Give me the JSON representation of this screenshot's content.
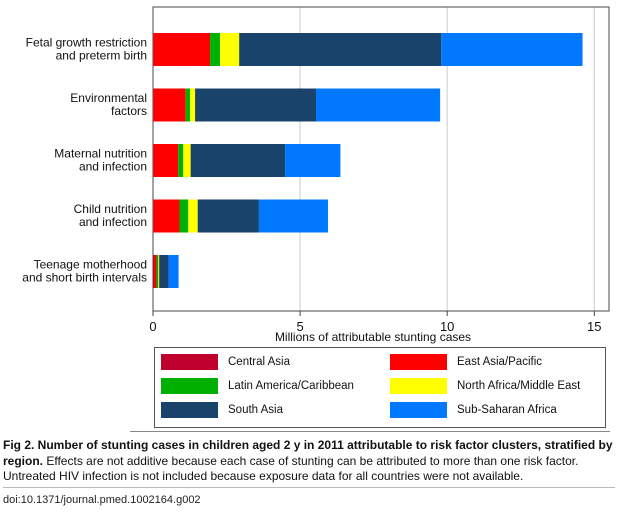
{
  "chart_data": {
    "type": "bar",
    "orientation": "horizontal",
    "stacked": true,
    "title": "",
    "xlabel": "Millions of attributable stunting cases",
    "ylabel": "",
    "xlim": [
      0,
      15.5
    ],
    "xticks": [
      0,
      5,
      10,
      15
    ],
    "grid": true,
    "legend_position": "bottom",
    "categories": [
      [
        "Fetal growth restriction",
        "and preterm birth"
      ],
      [
        "Environmental",
        "factors"
      ],
      [
        "Maternal nutrition",
        "and infection"
      ],
      [
        "Child nutrition",
        "and infection"
      ],
      [
        "Teenage motherhood",
        "and short birth intervals"
      ]
    ],
    "series": [
      {
        "name": "Central Asia",
        "color": "#c0002f",
        "values": [
          0.02,
          0.02,
          0.02,
          0.02,
          0.05
        ]
      },
      {
        "name": "East Asia/Pacific",
        "color": "#ff0000",
        "values": [
          1.92,
          1.09,
          0.84,
          0.88,
          0.07
        ]
      },
      {
        "name": "Latin America/Caribbean",
        "color": "#00b000",
        "values": [
          0.34,
          0.15,
          0.17,
          0.3,
          0.06
        ]
      },
      {
        "name": "North Africa/Middle East",
        "color": "#ffff00",
        "values": [
          0.65,
          0.17,
          0.25,
          0.32,
          0.03
        ]
      },
      {
        "name": "South Asia",
        "color": "#1a436c",
        "values": [
          6.87,
          4.11,
          3.21,
          2.08,
          0.32
        ]
      },
      {
        "name": "Sub-Saharan Africa",
        "color": "#0078ff",
        "values": [
          4.8,
          4.22,
          1.88,
          2.35,
          0.34
        ]
      }
    ]
  },
  "legend": {
    "items": [
      {
        "label": "Central Asia",
        "color": "#c0002f"
      },
      {
        "label": "East Asia/Pacific",
        "color": "#ff0000"
      },
      {
        "label": "Latin America/Caribbean",
        "color": "#00b000"
      },
      {
        "label": "North Africa/Middle East",
        "color": "#ffff00"
      },
      {
        "label": "South Asia",
        "color": "#1a436c"
      },
      {
        "label": "Sub-Saharan Africa",
        "color": "#0078ff"
      }
    ]
  },
  "caption": {
    "bold": "Fig 2. Number of stunting cases in children aged 2 y in 2011 attributable to risk factor clusters, stratified by region.",
    "text": " Effects are not additive because each case of stunting can be attributed to more than one risk factor. Untreated HIV infection is not included because exposure data for all countries were not available."
  },
  "doi": "doi:10.1371/journal.pmed.1002164.g002"
}
